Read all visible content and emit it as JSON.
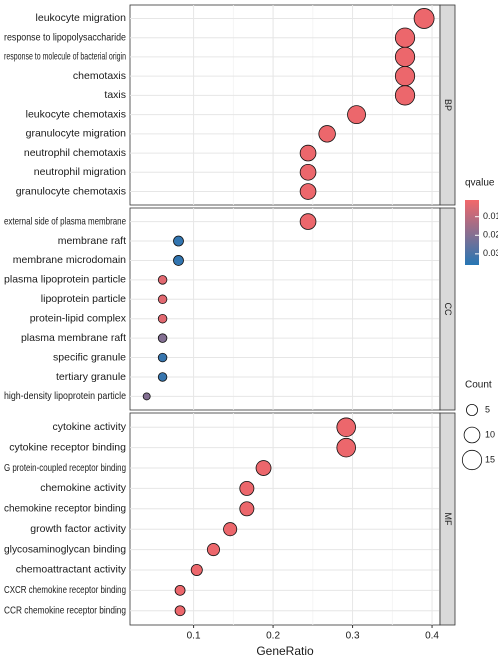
{
  "chart_data": {
    "type": "dot",
    "x_label": "GeneRatio",
    "xlim": [
      0.02,
      0.41
    ],
    "xticks": [
      0.1,
      0.2,
      0.3,
      0.4
    ],
    "grid": true,
    "color_legend": {
      "title": "qvalue",
      "qlim": [
        0.001,
        0.036
      ],
      "ticks": [
        0.01,
        0.02,
        0.03
      ],
      "colors": [
        "#f2676a",
        "#2676b4"
      ]
    },
    "size_legend": {
      "title": "Count",
      "values": [
        5,
        10,
        15
      ]
    },
    "panels": [
      {
        "name": "BP",
        "categories": [
          "leukocyte migration",
          "response to lipopolysaccharide",
          "response to molecule of bacterial origin",
          "chemotaxis",
          "taxis",
          "leukocyte chemotaxis",
          "granulocyte migration",
          "neutrophil chemotaxis",
          "neutrophil migration",
          "granulocyte chemotaxis"
        ],
        "values": [
          0.39,
          0.366,
          0.366,
          0.366,
          0.366,
          0.305,
          0.268,
          0.244,
          0.244,
          0.244
        ],
        "counts": [
          16,
          15,
          15,
          15,
          15,
          13,
          11,
          10,
          10,
          10
        ],
        "qvalues": [
          0.002,
          0.002,
          0.002,
          0.002,
          0.002,
          0.002,
          0.002,
          0.002,
          0.002,
          0.002
        ]
      },
      {
        "name": "CC",
        "categories": [
          "external side of plasma membrane",
          "membrane raft",
          "membrane microdomain",
          "plasma lipoprotein particle",
          "lipoprotein particle",
          "protein-lipid complex",
          "plasma membrane raft",
          "specific granule",
          "tertiary granule",
          "high-density lipoprotein particle"
        ],
        "values": [
          0.244,
          0.081,
          0.081,
          0.061,
          0.061,
          0.061,
          0.061,
          0.061,
          0.061,
          0.041
        ],
        "counts": [
          10,
          4,
          4,
          3,
          3,
          3,
          3,
          3,
          3,
          2
        ],
        "qvalues": [
          0.002,
          0.034,
          0.034,
          0.004,
          0.004,
          0.004,
          0.02,
          0.033,
          0.033,
          0.02
        ]
      },
      {
        "name": "MF",
        "categories": [
          "cytokine activity",
          "cytokine receptor binding",
          "G protein-coupled receptor binding",
          "chemokine activity",
          "chemokine receptor binding",
          "growth factor activity",
          "glycosaminoglycan binding",
          "chemoattractant activity",
          "CXCR chemokine receptor binding",
          "CCR chemokine receptor binding"
        ],
        "values": [
          0.292,
          0.292,
          0.188,
          0.167,
          0.167,
          0.146,
          0.125,
          0.104,
          0.083,
          0.083
        ],
        "counts": [
          14,
          14,
          9,
          8,
          8,
          7,
          6,
          5,
          4,
          4
        ],
        "qvalues": [
          0.002,
          0.002,
          0.002,
          0.002,
          0.002,
          0.002,
          0.002,
          0.002,
          0.002,
          0.002
        ]
      }
    ]
  }
}
